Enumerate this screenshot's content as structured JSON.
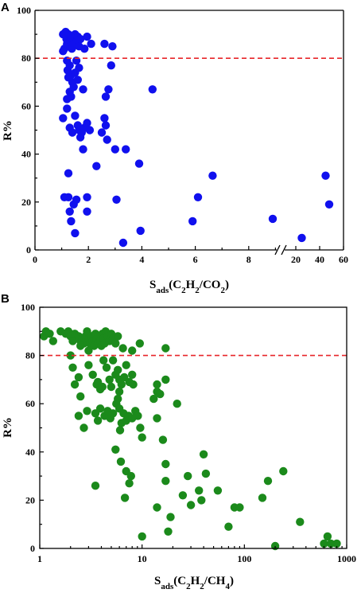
{
  "chart_data": [
    {
      "panel": "A",
      "type": "scatter",
      "xlabel": {
        "main": "S",
        "sub": "ads",
        "rest": "(C",
        "parts": [
          "S",
          "ads",
          "(C",
          "2",
          "H",
          "2",
          "/CO",
          "2",
          ")"
        ]
      },
      "ylabel": "R%",
      "color": "#1010ee",
      "ref_line": 80,
      "ref_color": "#e8262a",
      "xlim_main": [
        0,
        10
      ],
      "xlim_broken": [
        20,
        60
      ],
      "ylim": [
        0,
        100
      ],
      "xticks_main": [
        "0",
        "2",
        "4",
        "6",
        "8"
      ],
      "xticks_broken": [
        "20",
        "40",
        "60"
      ],
      "yticks": [
        "0",
        "20",
        "40",
        "60",
        "80",
        "100"
      ],
      "points": [
        [
          1.05,
          90
        ],
        [
          1.1,
          84
        ],
        [
          1.15,
          91
        ],
        [
          1.18,
          88
        ],
        [
          1.2,
          86
        ],
        [
          1.25,
          90
        ],
        [
          1.3,
          87
        ],
        [
          1.32,
          85
        ],
        [
          1.35,
          89
        ],
        [
          1.38,
          84
        ],
        [
          1.42,
          88
        ],
        [
          1.45,
          86
        ],
        [
          1.5,
          90
        ],
        [
          1.55,
          87
        ],
        [
          1.6,
          89
        ],
        [
          1.65,
          85
        ],
        [
          1.7,
          88
        ],
        [
          1.85,
          84
        ],
        [
          1.95,
          89
        ],
        [
          2.1,
          86
        ],
        [
          2.6,
          86
        ],
        [
          2.9,
          85
        ],
        [
          1.05,
          83
        ],
        [
          1.2,
          79
        ],
        [
          1.22,
          75
        ],
        [
          1.25,
          72
        ],
        [
          1.3,
          77
        ],
        [
          1.35,
          73
        ],
        [
          1.4,
          70
        ],
        [
          1.45,
          68
        ],
        [
          1.5,
          74
        ],
        [
          1.55,
          79
        ],
        [
          1.6,
          71
        ],
        [
          1.65,
          76
        ],
        [
          1.3,
          66
        ],
        [
          1.35,
          64
        ],
        [
          1.2,
          63
        ],
        [
          1.8,
          67
        ],
        [
          2.65,
          64
        ],
        [
          2.75,
          67
        ],
        [
          2.85,
          77
        ],
        [
          4.4,
          67
        ],
        [
          1.05,
          55
        ],
        [
          1.2,
          59
        ],
        [
          1.3,
          51
        ],
        [
          1.4,
          49
        ],
        [
          1.5,
          56
        ],
        [
          1.6,
          52
        ],
        [
          1.65,
          50
        ],
        [
          1.7,
          47
        ],
        [
          1.75,
          49
        ],
        [
          1.85,
          51
        ],
        [
          1.95,
          53
        ],
        [
          2.05,
          50
        ],
        [
          2.5,
          49
        ],
        [
          2.6,
          55
        ],
        [
          2.65,
          52
        ],
        [
          2.7,
          46
        ],
        [
          1.8,
          42
        ],
        [
          3.0,
          42
        ],
        [
          3.4,
          42
        ],
        [
          3.9,
          36
        ],
        [
          2.3,
          35
        ],
        [
          1.1,
          22
        ],
        [
          1.25,
          22
        ],
        [
          1.25,
          32
        ],
        [
          1.3,
          16
        ],
        [
          1.35,
          12
        ],
        [
          1.45,
          19
        ],
        [
          1.55,
          21
        ],
        [
          1.5,
          7
        ],
        [
          1.95,
          22
        ],
        [
          1.95,
          16
        ],
        [
          3.05,
          21
        ],
        [
          3.3,
          3
        ],
        [
          3.95,
          8
        ],
        [
          5.9,
          12
        ],
        [
          6.1,
          22
        ],
        [
          6.65,
          31
        ],
        [
          8.9,
          13
        ],
        [
          25,
          5
        ],
        [
          45,
          31
        ],
        [
          48,
          19
        ]
      ]
    },
    {
      "panel": "B",
      "type": "scatter",
      "xscale": "log",
      "xlabel": {
        "parts": [
          "S",
          "ads",
          "(C",
          "2",
          "H",
          "2",
          "/CH",
          "4",
          ")"
        ]
      },
      "ylabel": "R%",
      "color": "#1b8a1b",
      "ref_line": 80,
      "ref_color": "#e8262a",
      "xlim": [
        1,
        1000
      ],
      "ylim": [
        0,
        100
      ],
      "xticks": [
        "1",
        "10",
        "100",
        "1000"
      ],
      "yticks": [
        "0",
        "20",
        "40",
        "60",
        "80",
        "100"
      ],
      "points": [
        [
          1.1,
          88
        ],
        [
          1.15,
          90
        ],
        [
          1.25,
          89
        ],
        [
          1.35,
          86
        ],
        [
          1.6,
          90
        ],
        [
          1.8,
          89
        ],
        [
          1.9,
          90
        ],
        [
          2.0,
          88
        ],
        [
          2.1,
          86
        ],
        [
          2.2,
          89
        ],
        [
          2.4,
          88
        ],
        [
          2.5,
          86
        ],
        [
          2.6,
          87
        ],
        [
          2.7,
          85
        ],
        [
          2.8,
          88
        ],
        [
          2.9,
          90
        ],
        [
          3.0,
          87
        ],
        [
          3.1,
          85
        ],
        [
          3.2,
          88
        ],
        [
          3.3,
          86
        ],
        [
          3.4,
          84
        ],
        [
          3.5,
          89
        ],
        [
          3.6,
          87
        ],
        [
          3.7,
          85
        ],
        [
          3.8,
          88
        ],
        [
          3.9,
          86
        ],
        [
          4.0,
          84
        ],
        [
          4.1,
          89
        ],
        [
          4.2,
          87
        ],
        [
          4.3,
          85
        ],
        [
          4.4,
          90
        ],
        [
          4.6,
          88
        ],
        [
          4.8,
          86
        ],
        [
          5.0,
          89
        ],
        [
          5.2,
          87
        ],
        [
          5.5,
          85
        ],
        [
          5.8,
          88
        ],
        [
          6.5,
          83
        ],
        [
          8.0,
          82
        ],
        [
          9.5,
          85
        ],
        [
          17,
          83
        ],
        [
          2.5,
          84
        ],
        [
          3.0,
          82
        ],
        [
          2.0,
          80
        ],
        [
          2.1,
          75
        ],
        [
          2.4,
          71
        ],
        [
          3.0,
          76
        ],
        [
          3.3,
          72
        ],
        [
          3.6,
          68
        ],
        [
          3.9,
          66
        ],
        [
          4.2,
          78
        ],
        [
          4.5,
          75
        ],
        [
          4.8,
          70
        ],
        [
          5.0,
          67
        ],
        [
          5.2,
          78
        ],
        [
          5.5,
          72
        ],
        [
          5.8,
          74
        ],
        [
          6.0,
          70
        ],
        [
          6.3,
          68
        ],
        [
          6.7,
          71
        ],
        [
          7.0,
          76
        ],
        [
          7.5,
          69
        ],
        [
          8.0,
          72
        ],
        [
          2.2,
          68
        ],
        [
          2.5,
          63
        ],
        [
          3.7,
          69
        ],
        [
          4.1,
          67
        ],
        [
          8.2,
          68
        ],
        [
          14,
          68
        ],
        [
          14,
          65
        ],
        [
          17,
          70
        ],
        [
          15,
          64
        ],
        [
          13,
          62
        ],
        [
          2.4,
          55
        ],
        [
          2.7,
          50
        ],
        [
          2.9,
          57
        ],
        [
          3.5,
          56
        ],
        [
          3.7,
          53
        ],
        [
          3.9,
          58
        ],
        [
          4.3,
          55
        ],
        [
          4.6,
          57
        ],
        [
          4.9,
          54
        ],
        [
          5.2,
          56
        ],
        [
          5.6,
          60
        ],
        [
          6.0,
          58
        ],
        [
          6.3,
          52
        ],
        [
          6.6,
          56
        ],
        [
          7.0,
          53
        ],
        [
          7.4,
          55
        ],
        [
          8.0,
          54
        ],
        [
          8.6,
          57
        ],
        [
          9.1,
          55
        ],
        [
          9.6,
          50
        ],
        [
          6.1,
          49
        ],
        [
          10,
          46
        ],
        [
          14,
          54
        ],
        [
          22,
          60
        ],
        [
          5.8,
          62
        ],
        [
          6.0,
          65
        ],
        [
          3.5,
          26
        ],
        [
          5.5,
          41
        ],
        [
          6.2,
          36
        ],
        [
          7.0,
          32
        ],
        [
          6.8,
          21
        ],
        [
          7.5,
          27
        ],
        [
          7.8,
          30
        ],
        [
          10,
          5
        ],
        [
          14,
          17
        ],
        [
          16,
          45
        ],
        [
          17,
          35
        ],
        [
          18,
          7
        ],
        [
          17,
          28
        ],
        [
          19,
          13
        ],
        [
          25,
          22
        ],
        [
          28,
          30
        ],
        [
          30,
          18
        ],
        [
          36,
          24
        ],
        [
          38,
          20
        ],
        [
          40,
          39
        ],
        [
          42,
          31
        ],
        [
          55,
          24
        ],
        [
          70,
          9
        ],
        [
          80,
          17
        ],
        [
          90,
          17
        ],
        [
          150,
          21
        ],
        [
          170,
          28
        ],
        [
          200,
          1
        ],
        [
          240,
          32
        ],
        [
          350,
          11
        ],
        [
          600,
          2
        ],
        [
          650,
          5
        ],
        [
          700,
          2
        ],
        [
          800,
          2
        ]
      ]
    }
  ]
}
